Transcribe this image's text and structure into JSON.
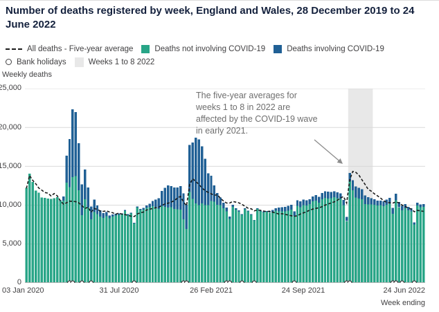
{
  "title": "Number of deaths registered by week, England and Wales, 28 December 2019 to 24 June 2022",
  "colors": {
    "non_covid": "#28A587",
    "covid": "#206095",
    "band": "#E8E8E8",
    "grid": "#D9D9D9",
    "axis": "#B3B3B3",
    "line": "#1A1A1A",
    "annotation_text": "#6E6E6E",
    "annotation_arrow": "#8C8C8C"
  },
  "legend": [
    {
      "label": "All deaths - Five-year average",
      "type": "dashed-line"
    },
    {
      "label": "Deaths not involving COVID-19",
      "type": "square",
      "color_key": "non_covid"
    },
    {
      "label": "Deaths involving COVID-19",
      "type": "square",
      "color_key": "covid"
    },
    {
      "label": "Bank holidays",
      "type": "circle"
    },
    {
      "label": "Weeks 1 to 8 2022",
      "type": "band",
      "color_key": "band"
    }
  ],
  "y_axis": {
    "title": "Weekly deaths",
    "ticks": [
      "25,000",
      "20,000",
      "15,000",
      "10,000",
      "5,000",
      "0"
    ]
  },
  "x_axis": {
    "caption": "Week ending",
    "ticks": [
      {
        "label": "03 Jan 2020",
        "index": 0
      },
      {
        "label": "31 Jul 2020",
        "index": 30
      },
      {
        "label": "26 Feb 2021",
        "index": 60
      },
      {
        "label": "24 Sep 2021",
        "index": 90
      },
      {
        "label": "24 Jun 2022",
        "index": 129
      }
    ]
  },
  "annotation": {
    "text": "The five-year averages for weeks 1 to 8 in 2022 are affected by the COVID-19 wave in early 2021."
  },
  "chart_data": {
    "type": "bar",
    "stacked": true,
    "y_max": 25000,
    "x": [
      "03 Jan 2020",
      "10 Jan 2020",
      "17 Jan 2020",
      "24 Jan 2020",
      "31 Jan 2020",
      "07 Feb 2020",
      "14 Feb 2020",
      "21 Feb 2020",
      "28 Feb 2020",
      "06 Mar 2020",
      "13 Mar 2020",
      "20 Mar 2020",
      "27 Mar 2020",
      "03 Apr 2020",
      "10 Apr 2020",
      "17 Apr 2020",
      "24 Apr 2020",
      "01 May 2020",
      "08 May 2020",
      "15 May 2020",
      "22 May 2020",
      "29 May 2020",
      "05 Jun 2020",
      "12 Jun 2020",
      "19 Jun 2020",
      "26 Jun 2020",
      "03 Jul 2020",
      "10 Jul 2020",
      "17 Jul 2020",
      "24 Jul 2020",
      "31 Jul 2020",
      "07 Aug 2020",
      "14 Aug 2020",
      "21 Aug 2020",
      "28 Aug 2020",
      "04 Sep 2020",
      "11 Sep 2020",
      "18 Sep 2020",
      "25 Sep 2020",
      "02 Oct 2020",
      "09 Oct 2020",
      "16 Oct 2020",
      "23 Oct 2020",
      "30 Oct 2020",
      "06 Nov 2020",
      "13 Nov 2020",
      "20 Nov 2020",
      "27 Nov 2020",
      "04 Dec 2020",
      "11 Dec 2020",
      "18 Dec 2020",
      "25 Dec 2020",
      "01 Jan 2021",
      "08 Jan 2021",
      "15 Jan 2021",
      "22 Jan 2021",
      "29 Jan 2021",
      "05 Feb 2021",
      "12 Feb 2021",
      "19 Feb 2021",
      "26 Feb 2021",
      "05 Mar 2021",
      "12 Mar 2021",
      "19 Mar 2021",
      "26 Mar 2021",
      "02 Apr 2021",
      "09 Apr 2021",
      "16 Apr 2021",
      "23 Apr 2021",
      "30 Apr 2021",
      "07 May 2021",
      "14 May 2021",
      "21 May 2021",
      "28 May 2021",
      "04 Jun 2021",
      "11 Jun 2021",
      "18 Jun 2021",
      "25 Jun 2021",
      "02 Jul 2021",
      "09 Jul 2021",
      "16 Jul 2021",
      "23 Jul 2021",
      "30 Jul 2021",
      "06 Aug 2021",
      "13 Aug 2021",
      "20 Aug 2021",
      "27 Aug 2021",
      "03 Sep 2021",
      "10 Sep 2021",
      "17 Sep 2021",
      "24 Sep 2021",
      "01 Oct 2021",
      "08 Oct 2021",
      "15 Oct 2021",
      "22 Oct 2021",
      "29 Oct 2021",
      "05 Nov 2021",
      "12 Nov 2021",
      "19 Nov 2021",
      "26 Nov 2021",
      "03 Dec 2021",
      "10 Dec 2021",
      "17 Dec 2021",
      "24 Dec 2021",
      "31 Dec 2021",
      "07 Jan 2022",
      "14 Jan 2022",
      "21 Jan 2022",
      "28 Jan 2022",
      "04 Feb 2022",
      "11 Feb 2022",
      "18 Feb 2022",
      "25 Feb 2022",
      "04 Mar 2022",
      "11 Mar 2022",
      "18 Mar 2022",
      "25 Mar 2022",
      "01 Apr 2022",
      "08 Apr 2022",
      "15 Apr 2022",
      "22 Apr 2022",
      "29 Apr 2022",
      "06 May 2022",
      "13 May 2022",
      "20 May 2022",
      "27 May 2022",
      "03 Jun 2022",
      "10 Jun 2022",
      "17 Jun 2022",
      "24 Jun 2022"
    ],
    "series": [
      {
        "name": "Deaths not involving COVID-19",
        "values": [
          12254,
          14058,
          12990,
          11856,
          11612,
          10986,
          10944,
          10841,
          10816,
          10894,
          11014,
          10542,
          10602,
          12912,
          12303,
          13593,
          13760,
          11918,
          8727,
          10763,
          9699,
          8171,
          9121,
          8862,
          8556,
          8373,
          8608,
          8324,
          8528,
          8674,
          8753,
          8793,
          9253,
          8709,
          8931,
          7661,
          9712,
          9384,
          9419,
          9633,
          9729,
          9864,
          9761,
          9508,
          9875,
          9788,
          9707,
          9759,
          9536,
          9458,
          9416,
          8173,
          6925,
          11694,
          10797,
          10254,
          10015,
          10240,
          10005,
          10017,
          10550,
          10446,
          10077,
          10024,
          9592,
          9197,
          8240,
          9802,
          9421,
          9182,
          8748,
          9495,
          9223,
          8770,
          8042,
          9530,
          9216,
          9065,
          9146,
          9050,
          9186,
          9292,
          9217,
          9200,
          9217,
          9315,
          9421,
          8622,
          9926,
          9741,
          10010,
          9977,
          10157,
          10483,
          10574,
          10330,
          10749,
          10938,
          10871,
          10886,
          11013,
          10922,
          10807,
          10000,
          7940,
          13057,
          11930,
          11011,
          10863,
          10764,
          10130,
          10107,
          10097,
          10067,
          9975,
          9993,
          9879,
          10045,
          10181,
          8912,
          10616,
          9719,
          9329,
          9609,
          9326,
          9219,
          7499,
          9982,
          9749,
          9794
        ]
      },
      {
        "name": "Deaths involving COVID-19",
        "values": [
          0,
          0,
          0,
          0,
          0,
          0,
          0,
          0,
          0,
          1,
          5,
          103,
          539,
          3475,
          6213,
          8758,
          8237,
          6035,
          3930,
          3810,
          2589,
          1653,
          1588,
          1114,
          783,
          606,
          532,
          366,
          295,
          217,
          193,
          152,
          139,
          138,
          101,
          78,
          99,
          139,
          215,
          321,
          438,
          670,
          978,
          1379,
          1937,
          2466,
          2828,
          2697,
          2756,
          2835,
          3043,
          3347,
          3144,
          6057,
          7245,
          8422,
          8433,
          7320,
          5981,
          4079,
          3259,
          2105,
          1501,
          963,
          719,
          487,
          301,
          260,
          205,
          139,
          108,
          96,
          86,
          72,
          63,
          70,
          84,
          107,
          122,
          163,
          218,
          327,
          468,
          527,
          571,
          605,
          651,
          590,
          723,
          737,
          724,
          648,
          616,
          654,
          716,
          764,
          830,
          862,
          892,
          835,
          795,
          745,
          724,
          690,
          570,
          1086,
          1272,
          1385,
          1390,
          1287,
          1106,
          915,
          802,
          704,
          605,
          591,
          635,
          692,
          769,
          760,
          842,
          698,
          601,
          536,
          467,
          395,
          300,
          327,
          327,
          358
        ]
      },
      {
        "name": "All deaths - Five-year average",
        "values": [
          12175,
          13822,
          13216,
          12760,
          12206,
          11925,
          11627,
          11548,
          11183,
          11498,
          11205,
          10573,
          10130,
          10305,
          10520,
          10497,
          10458,
          10305,
          9941,
          9576,
          9741,
          9103,
          9573,
          9463,
          9241,
          9206,
          9268,
          9116,
          9029,
          8847,
          8982,
          8849,
          8792,
          8684,
          8586,
          8537,
          8872,
          9021,
          9119,
          9376,
          9489,
          9570,
          9673,
          9752,
          9966,
          10167,
          10260,
          10390,
          10568,
          10904,
          11126,
          10429,
          9941,
          12652,
          13405,
          13036,
          12690,
          12213,
          11883,
          11650,
          11469,
          11268,
          11346,
          10898,
          10533,
          10276,
          10274,
          10480,
          10393,
          10300,
          10108,
          9855,
          9610,
          9538,
          9270,
          9378,
          9344,
          9247,
          9180,
          9224,
          9100,
          8986,
          8859,
          8909,
          8813,
          8736,
          8648,
          8570,
          8640,
          8871,
          9023,
          9166,
          9364,
          9497,
          9594,
          9662,
          9801,
          10010,
          10148,
          10290,
          10427,
          10628,
          10933,
          11114,
          10278,
          13283,
          14343,
          14218,
          13862,
          13240,
          12663,
          12035,
          11804,
          11467,
          11211,
          10925,
          10575,
          10353,
          10316,
          10278,
          10419,
          10304,
          10008,
          9840,
          9646,
          9498,
          9151,
          9331,
          9272,
          9202
        ]
      }
    ],
    "bank_holiday_week_indices": [
      14,
      15,
      18,
      21,
      35,
      51,
      52,
      65,
      66,
      70,
      74,
      87,
      104,
      105,
      119,
      120,
      122,
      126
    ],
    "highlight_band": {
      "label": "Weeks 1 to 8 2022",
      "start_index": 105,
      "end_index": 112
    },
    "legend_position": "top",
    "grid": true
  }
}
